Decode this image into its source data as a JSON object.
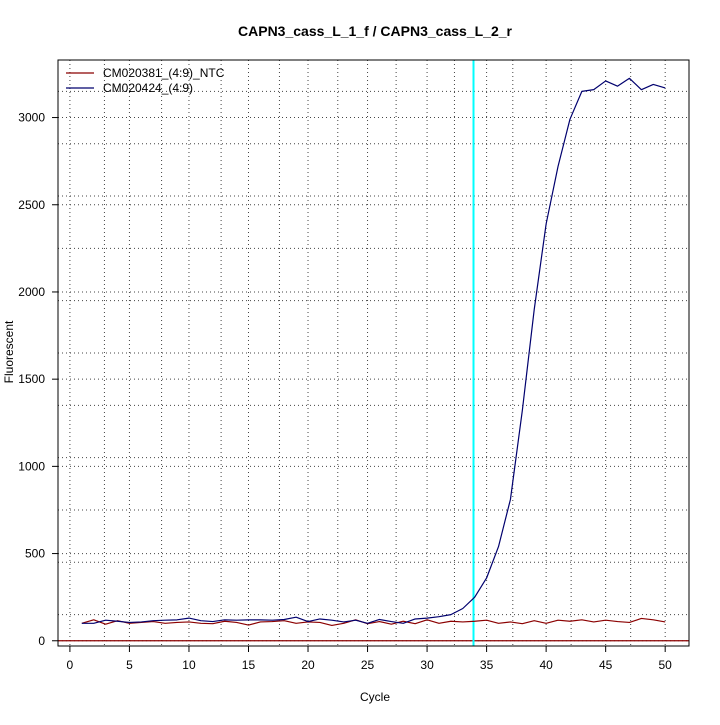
{
  "chart_data": {
    "type": "line",
    "title": "CAPN3_cass_L_1_f / CAPN3_cass_L_2_r",
    "xlabel": "Cycle",
    "ylabel": "Fluorescent",
    "xlim": [
      -1,
      52
    ],
    "ylim": [
      -30,
      3330
    ],
    "xticks": [
      0,
      5,
      10,
      15,
      20,
      25,
      30,
      35,
      40,
      45,
      50
    ],
    "yticks": [
      0,
      500,
      1000,
      1500,
      2000,
      2500,
      3000
    ],
    "grid": true,
    "grid_x_minor": [
      2.9,
      7.7,
      12.7,
      17.6,
      22.5,
      27.4,
      32.3,
      37.2,
      42.1,
      47.1
    ],
    "grid_y_minor": [
      150,
      450,
      750,
      1050,
      1350,
      1650,
      1950,
      2250,
      2550,
      2850,
      3150
    ],
    "threshold": {
      "value": 0,
      "color": "#8b0000"
    },
    "cycle_marker": {
      "x": 33.9,
      "color": "#00ffff"
    },
    "legend": {
      "placement": "top-left"
    },
    "x": [
      1,
      2,
      3,
      4,
      5,
      6,
      7,
      8,
      9,
      10,
      11,
      12,
      13,
      14,
      15,
      16,
      17,
      18,
      19,
      20,
      21,
      22,
      23,
      24,
      25,
      26,
      27,
      28,
      29,
      30,
      31,
      32,
      33,
      34,
      35,
      36,
      37,
      38,
      39,
      40,
      41,
      42,
      43,
      44,
      45,
      46,
      47,
      48,
      49,
      50
    ],
    "series": [
      {
        "name": "CM020381_(4:9)_NTC",
        "color": "#8b0000",
        "values": [
          100,
          120,
          95,
          115,
          100,
          105,
          110,
          100,
          105,
          108,
          100,
          98,
          112,
          105,
          90,
          108,
          110,
          115,
          100,
          108,
          105,
          88,
          100,
          120,
          98,
          110,
          95,
          112,
          98,
          120,
          100,
          112,
          108,
          112,
          118,
          100,
          108,
          98,
          115,
          100,
          118,
          112,
          120,
          108,
          118,
          110,
          105,
          128,
          120,
          108
        ]
      },
      {
        "name": "CM020424_(4:9)",
        "color": "#00006e",
        "values": [
          100,
          100,
          118,
          112,
          105,
          108,
          115,
          118,
          120,
          130,
          115,
          110,
          120,
          118,
          120,
          120,
          118,
          122,
          135,
          110,
          125,
          118,
          108,
          118,
          100,
          122,
          110,
          100,
          125,
          130,
          138,
          150,
          185,
          250,
          360,
          540,
          810,
          1320,
          1900,
          2390,
          2720,
          2990,
          3150,
          3160,
          3210,
          3180,
          3225,
          3160,
          3190,
          3170
        ]
      }
    ]
  }
}
